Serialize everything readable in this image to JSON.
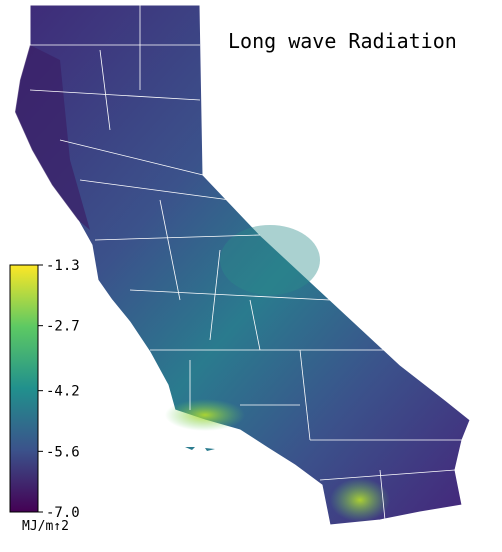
{
  "title": "Long wave Radiation",
  "colorbar": {
    "label": "MJ/m↑2",
    "lim": [
      -7,
      -1.3
    ],
    "ticks": [
      -1.3,
      -2.7,
      -4.2,
      -5.6,
      {
        "value": -7,
        "label": "-7.0"
      }
    ],
    "colors": [
      "#440154",
      "#3b528b",
      "#21908d",
      "#5dc963",
      "#fde725"
    ]
  }
}
